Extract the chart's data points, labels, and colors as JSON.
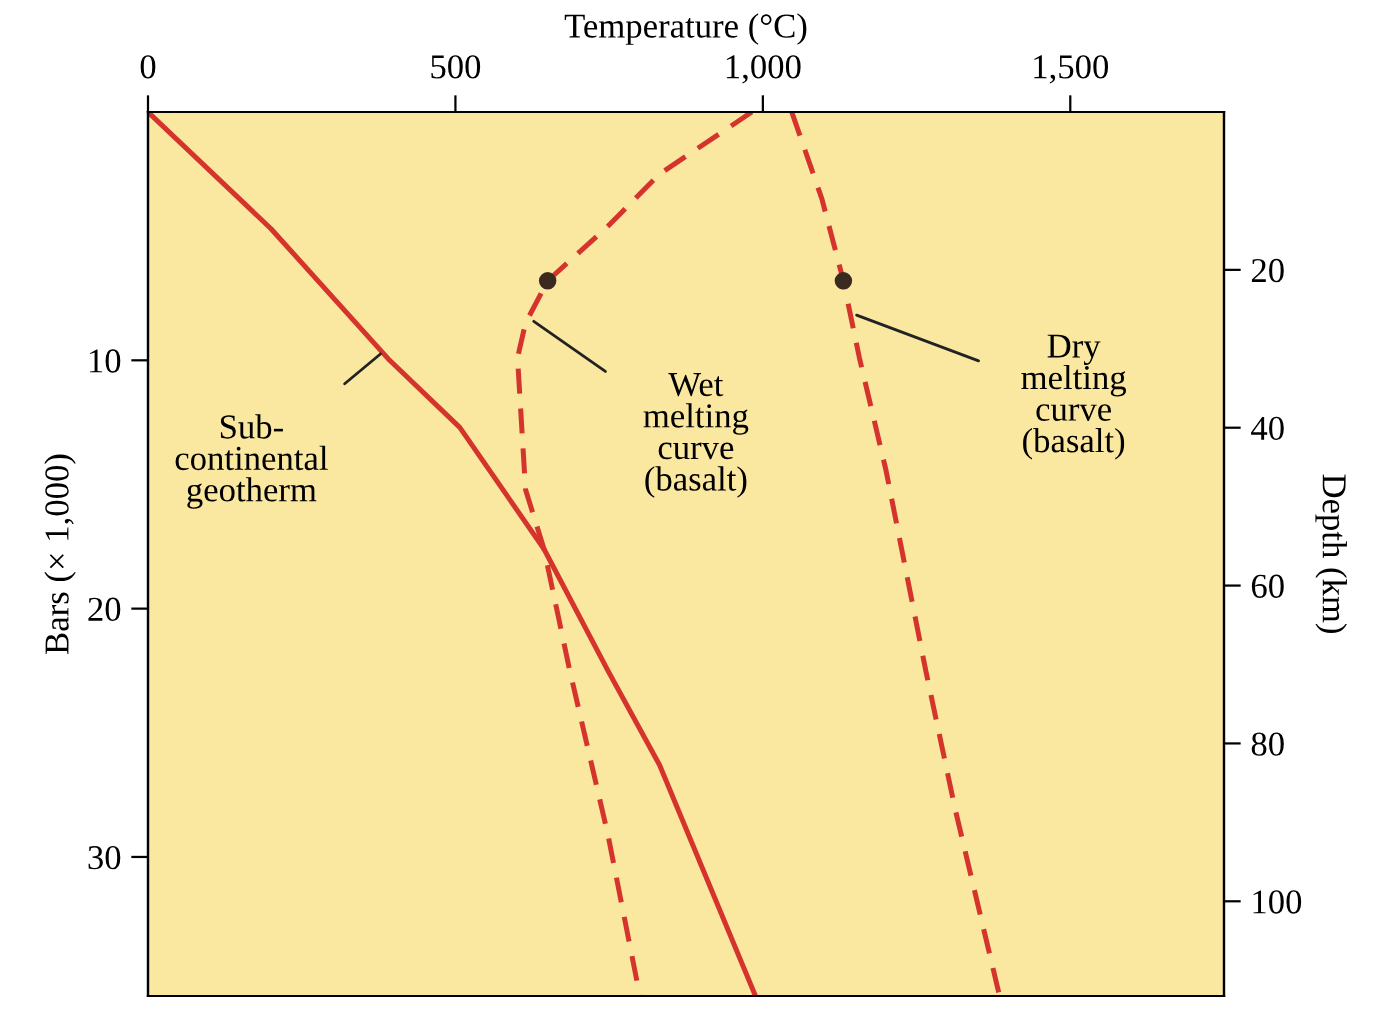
{
  "chart_data": {
    "type": "line",
    "xlabel": "Temperature (°C)",
    "ylabel": "Bars (× 1,000)",
    "y2label": "Depth (km)",
    "xlim": [
      0,
      1750
    ],
    "xticks": [
      0,
      500,
      {
        "value": 1000,
        "label": "1,000"
      },
      {
        "value": 1500,
        "label": "1,500"
      }
    ],
    "ylim": [
      35.6,
      0
    ],
    "yticks": [
      10,
      20,
      30
    ],
    "y2lim": [
      112,
      0
    ],
    "y2ticks": [
      20,
      40,
      60,
      80,
      100
    ],
    "grid": false,
    "legend": false,
    "series": [
      {
        "color": "#d4342c",
        "line_style": "solid",
        "x": [
          0,
          200,
          393,
          507,
          644,
          748,
          832,
          988
        ],
        "values": [
          0,
          4.7,
          10,
          12.7,
          17.6,
          22.5,
          26.3,
          35.6
        ]
      },
      {
        "color": "#d4342c",
        "line_style": "dashed",
        "x": [
          982,
          832,
          748,
          650,
          614,
          601,
          614,
          644,
          686,
          748,
          800
        ],
        "values": [
          0,
          2.5,
          4.6,
          6.8,
          8.5,
          9.9,
          15.2,
          17.6,
          22.5,
          29.1,
          35.6
        ]
      },
      {
        "color": "#d4342c",
        "line_style": "dashed",
        "x": [
          1047,
          1096,
          1131,
          1157,
          1200,
          1265,
          1313,
          1385
        ],
        "values": [
          0,
          3.5,
          6.8,
          9.9,
          14.4,
          22.5,
          28.1,
          35.6
        ]
      },
      {
        "type": "scatter",
        "color": "#3a2a20",
        "marker": "circle",
        "x": [
          650,
          1131
        ],
        "values": [
          6.8,
          6.8
        ]
      }
    ],
    "annotations": [
      {
        "text": "Sub-\ncontinental\ngeotherm",
        "x": 385,
        "y": 9.6
      },
      {
        "text": "Wet\nmelting\ncurve\n(basalt)",
        "x": 620,
        "y": 8.3
      },
      {
        "text": "Dry\nmelting\ncurve\n(basalt)",
        "x": 1144,
        "y": 8.1
      }
    ]
  }
}
